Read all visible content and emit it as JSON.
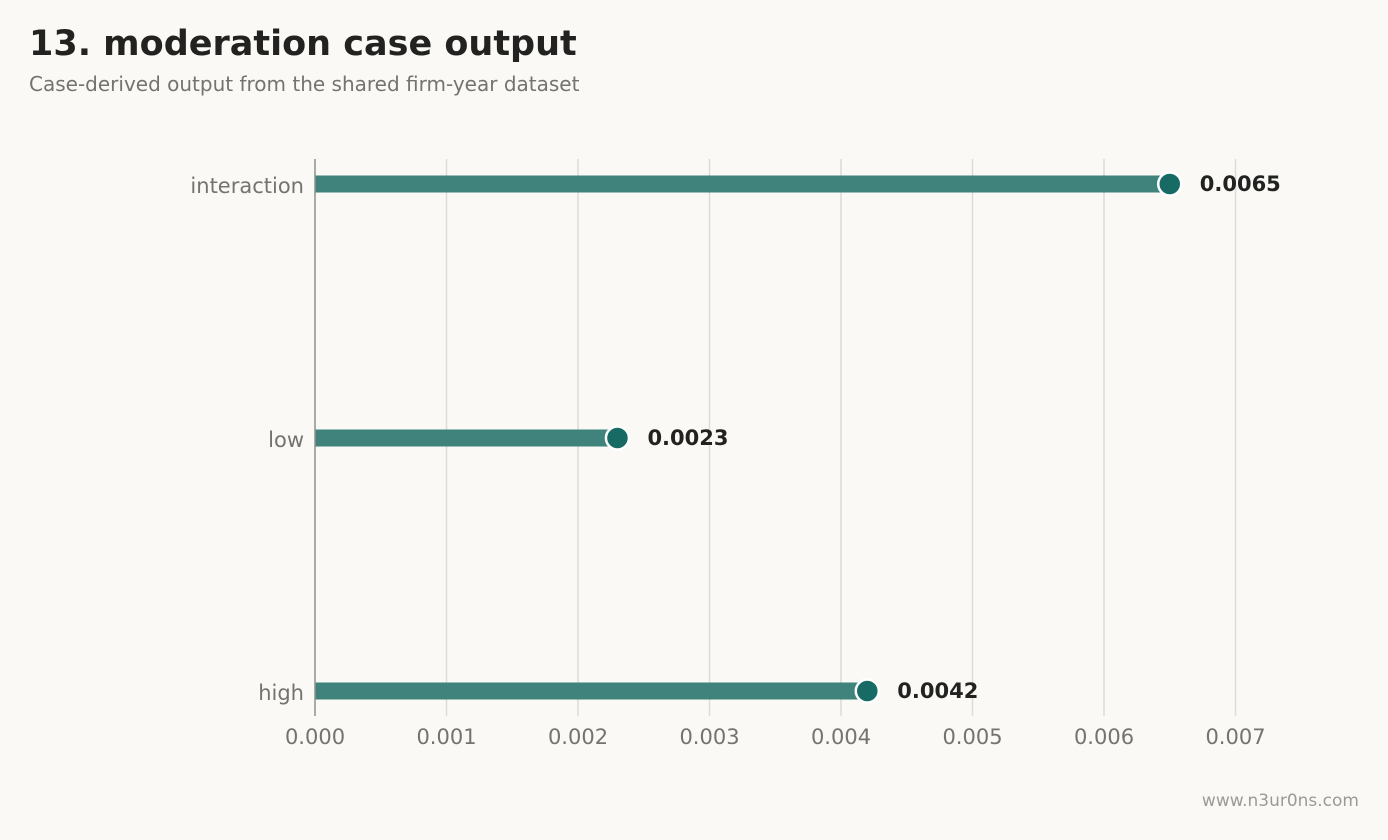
{
  "header": {
    "title": "13. moderation case output",
    "subtitle": "Case-derived output from the shared firm-year dataset"
  },
  "footer": {
    "watermark": "www.n3ur0ns.com"
  },
  "colors": {
    "bar": "#3f837c",
    "dot": "#176b64",
    "grid": "#dcdbd6",
    "axis": "#8f8f8c",
    "background": "#faf9f6"
  },
  "chart_data": {
    "type": "bar",
    "orientation": "horizontal",
    "style": "lollipop",
    "categories": [
      "interaction",
      "low",
      "high"
    ],
    "values": [
      0.0065,
      0.0023,
      0.0042
    ],
    "value_labels": [
      "0.0065",
      "0.0023",
      "0.0042"
    ],
    "xlim": [
      0,
      0.0075
    ],
    "xticks": [
      0,
      0.001,
      0.002,
      0.003,
      0.004,
      0.005,
      0.006,
      0.007
    ],
    "xtick_labels": [
      "0.000",
      "0.001",
      "0.002",
      "0.003",
      "0.004",
      "0.005",
      "0.006",
      "0.007"
    ],
    "grid": "vertical",
    "title": "13. moderation case output",
    "subtitle": "Case-derived output from the shared firm-year dataset",
    "xlabel": "",
    "ylabel": ""
  }
}
